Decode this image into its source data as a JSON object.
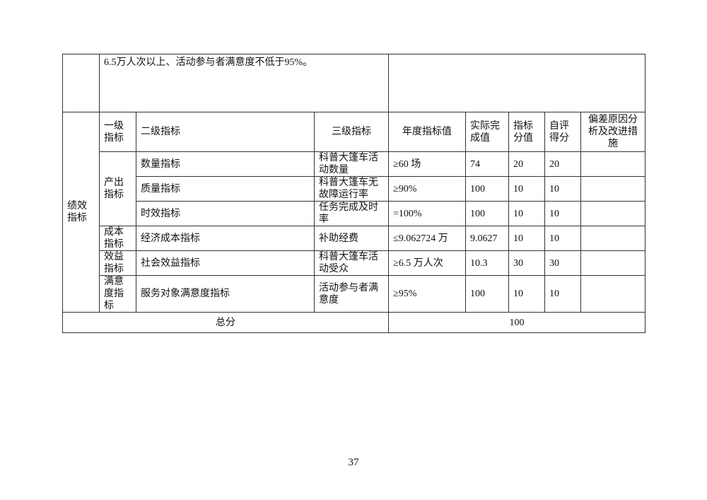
{
  "intro_text": "6.5万人次以上、活动参与者满意度不低于95%。",
  "section_label": "绩效指标",
  "headers": {
    "level1": "一级指标",
    "level2": "二级指标",
    "level3": "三级指标",
    "annual_target": "年度指标值",
    "actual": "实际完成值",
    "weight": "指标分值",
    "self_score": "自评得分",
    "deviation": "偏差原因分析及改进措施"
  },
  "groups": {
    "output": "产出指标",
    "cost": "成本指标",
    "benefit": "效益指标",
    "satisfaction": "满意度指标"
  },
  "rows": [
    {
      "level2": "数量指标",
      "level3": "科普大篷车活动数量",
      "target": "≥60 场",
      "actual": "74",
      "weight": "20",
      "score": "20",
      "deviation": ""
    },
    {
      "level2": "质量指标",
      "level3": "科普大篷车无故障运行率",
      "target": "≥90%",
      "actual": "100",
      "weight": "10",
      "score": "10",
      "deviation": ""
    },
    {
      "level2": "时效指标",
      "level3": "任务完成及时率",
      "target": "=100%",
      "actual": "100",
      "weight": "10",
      "score": "10",
      "deviation": ""
    },
    {
      "level2": "经济成本指标",
      "level3": "补助经费",
      "target": "≤9.062724 万",
      "actual": "9.0627",
      "weight": "10",
      "score": "10",
      "deviation": ""
    },
    {
      "level2": "社会效益指标",
      "level3": "科普大篷车活动受众",
      "target": "≥6.5 万人次",
      "actual": "10.3",
      "weight": "30",
      "score": "30",
      "deviation": ""
    },
    {
      "level2": "服务对象满意度指标",
      "level3": "活动参与者满意度",
      "target": "≥95%",
      "actual": "100",
      "weight": "10",
      "score": "10",
      "deviation": ""
    }
  ],
  "total": {
    "label": "总分",
    "value": "100"
  },
  "page_number": "37"
}
